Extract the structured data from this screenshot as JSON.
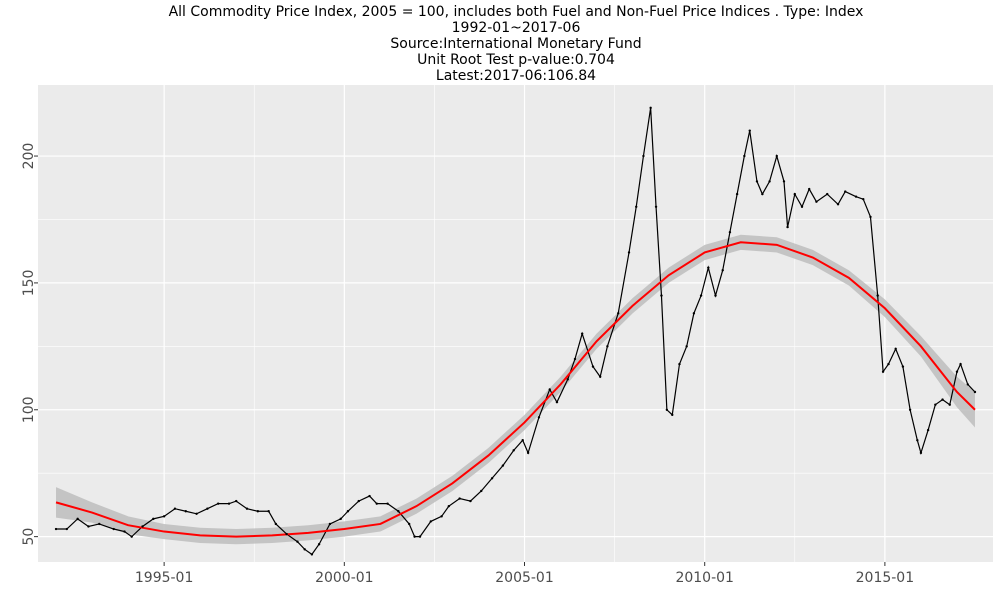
{
  "title": {
    "line1": "All Commodity Price Index, 2005 = 100, includes both Fuel and Non-Fuel Price Indices . Type: Index",
    "line2": "1992-01~2017-06",
    "line3": "Source:International Monetary Fund",
    "line4": "Unit Root Test p-value:0.704",
    "line5": "Latest:2017-06:106.84"
  },
  "chart_data": {
    "type": "line",
    "title": "All Commodity Price Index, 2005 = 100, includes both Fuel and Non-Fuel Price Indices . Type: Index",
    "xlabel": "",
    "ylabel": "",
    "xlim": [
      1991.5,
      2018.0
    ],
    "ylim": [
      40,
      228
    ],
    "grid": true,
    "x_ticks": [
      1995,
      2000,
      2005,
      2010,
      2015
    ],
    "x_tick_labels": [
      "1995-01",
      "2000-01",
      "2005-01",
      "2010-01",
      "2015-01"
    ],
    "y_ticks": [
      50,
      100,
      150,
      200
    ],
    "y_tick_labels": [
      "50",
      "100",
      "150",
      "200"
    ],
    "colors": {
      "series": "#000000",
      "trend": "#ff0000",
      "band": "#bdbdbd",
      "panel": "#ebebeb",
      "grid": "#ffffff"
    },
    "series": [
      {
        "values": [
          [
            1992.0,
            53
          ],
          [
            1992.3,
            53
          ],
          [
            1992.6,
            57
          ],
          [
            1992.9,
            54
          ],
          [
            1993.2,
            55
          ],
          [
            1993.6,
            53
          ],
          [
            1993.9,
            52
          ],
          [
            1994.1,
            50
          ],
          [
            1994.4,
            54
          ],
          [
            1994.7,
            57
          ],
          [
            1995.0,
            58
          ],
          [
            1995.3,
            61
          ],
          [
            1995.6,
            60
          ],
          [
            1995.9,
            59
          ],
          [
            1996.2,
            61
          ],
          [
            1996.5,
            63
          ],
          [
            1996.8,
            63
          ],
          [
            1997.0,
            64
          ],
          [
            1997.3,
            61
          ],
          [
            1997.6,
            60
          ],
          [
            1997.9,
            60
          ],
          [
            1998.1,
            55
          ],
          [
            1998.4,
            51
          ],
          [
            1998.7,
            48
          ],
          [
            1998.9,
            45
          ],
          [
            1999.1,
            43
          ],
          [
            1999.3,
            47
          ],
          [
            1999.6,
            55
          ],
          [
            1999.9,
            57
          ],
          [
            2000.1,
            60
          ],
          [
            2000.4,
            64
          ],
          [
            2000.7,
            66
          ],
          [
            2000.9,
            63
          ],
          [
            2001.2,
            63
          ],
          [
            2001.5,
            60
          ],
          [
            2001.8,
            55
          ],
          [
            2001.95,
            50
          ],
          [
            2002.1,
            50
          ],
          [
            2002.4,
            56
          ],
          [
            2002.7,
            58
          ],
          [
            2002.9,
            62
          ],
          [
            2003.2,
            65
          ],
          [
            2003.5,
            64
          ],
          [
            2003.8,
            68
          ],
          [
            2004.1,
            73
          ],
          [
            2004.4,
            78
          ],
          [
            2004.7,
            84
          ],
          [
            2004.95,
            88
          ],
          [
            2005.1,
            83
          ],
          [
            2005.4,
            97
          ],
          [
            2005.7,
            108
          ],
          [
            2005.9,
            103
          ],
          [
            2006.2,
            112
          ],
          [
            2006.4,
            120
          ],
          [
            2006.6,
            130
          ],
          [
            2006.9,
            117
          ],
          [
            2007.1,
            113
          ],
          [
            2007.3,
            125
          ],
          [
            2007.6,
            138
          ],
          [
            2007.9,
            162
          ],
          [
            2008.1,
            180
          ],
          [
            2008.3,
            200
          ],
          [
            2008.5,
            219
          ],
          [
            2008.65,
            180
          ],
          [
            2008.8,
            145
          ],
          [
            2008.95,
            100
          ],
          [
            2009.1,
            98
          ],
          [
            2009.3,
            118
          ],
          [
            2009.5,
            125
          ],
          [
            2009.7,
            138
          ],
          [
            2009.9,
            145
          ],
          [
            2010.1,
            156
          ],
          [
            2010.3,
            145
          ],
          [
            2010.5,
            155
          ],
          [
            2010.7,
            170
          ],
          [
            2010.9,
            185
          ],
          [
            2011.1,
            200
          ],
          [
            2011.25,
            210
          ],
          [
            2011.45,
            190
          ],
          [
            2011.6,
            185
          ],
          [
            2011.8,
            190
          ],
          [
            2012.0,
            200
          ],
          [
            2012.2,
            190
          ],
          [
            2012.3,
            172
          ],
          [
            2012.5,
            185
          ],
          [
            2012.7,
            180
          ],
          [
            2012.9,
            187
          ],
          [
            2013.1,
            182
          ],
          [
            2013.4,
            185
          ],
          [
            2013.7,
            181
          ],
          [
            2013.9,
            186
          ],
          [
            2014.2,
            184
          ],
          [
            2014.4,
            183
          ],
          [
            2014.6,
            176
          ],
          [
            2014.8,
            145
          ],
          [
            2014.95,
            115
          ],
          [
            2015.1,
            118
          ],
          [
            2015.3,
            124
          ],
          [
            2015.5,
            117
          ],
          [
            2015.7,
            100
          ],
          [
            2015.9,
            88
          ],
          [
            2016.0,
            83
          ],
          [
            2016.2,
            92
          ],
          [
            2016.4,
            102
          ],
          [
            2016.6,
            104
          ],
          [
            2016.8,
            102
          ],
          [
            2017.0,
            115
          ],
          [
            2017.1,
            118
          ],
          [
            2017.3,
            110
          ],
          [
            2017.5,
            107
          ]
        ]
      },
      {
        "values": [
          [
            1992.0,
            63.5
          ],
          [
            1993.0,
            59.5
          ],
          [
            1994.0,
            54.5
          ],
          [
            1995.0,
            52
          ],
          [
            1996.0,
            50.5
          ],
          [
            1997.0,
            50
          ],
          [
            1998.0,
            50.5
          ],
          [
            1999.0,
            51.5
          ],
          [
            2000.0,
            53
          ],
          [
            2001.0,
            55
          ],
          [
            2002.0,
            62
          ],
          [
            2003.0,
            71
          ],
          [
            2004.0,
            82
          ],
          [
            2005.0,
            95
          ],
          [
            2006.0,
            110
          ],
          [
            2007.0,
            127
          ],
          [
            2008.0,
            141
          ],
          [
            2009.0,
            153
          ],
          [
            2010.0,
            162
          ],
          [
            2011.0,
            166
          ],
          [
            2012.0,
            165
          ],
          [
            2013.0,
            160
          ],
          [
            2014.0,
            152
          ],
          [
            2015.0,
            140
          ],
          [
            2016.0,
            125
          ],
          [
            2017.0,
            107
          ],
          [
            2017.5,
            100
          ]
        ],
        "band": [
          6,
          4,
          3.5,
          3,
          3,
          3,
          3,
          3,
          3,
          3,
          3,
          3,
          3,
          3,
          3,
          3,
          3,
          3,
          3,
          3,
          3,
          3,
          3,
          3.5,
          4,
          6,
          7
        ]
      }
    ]
  }
}
